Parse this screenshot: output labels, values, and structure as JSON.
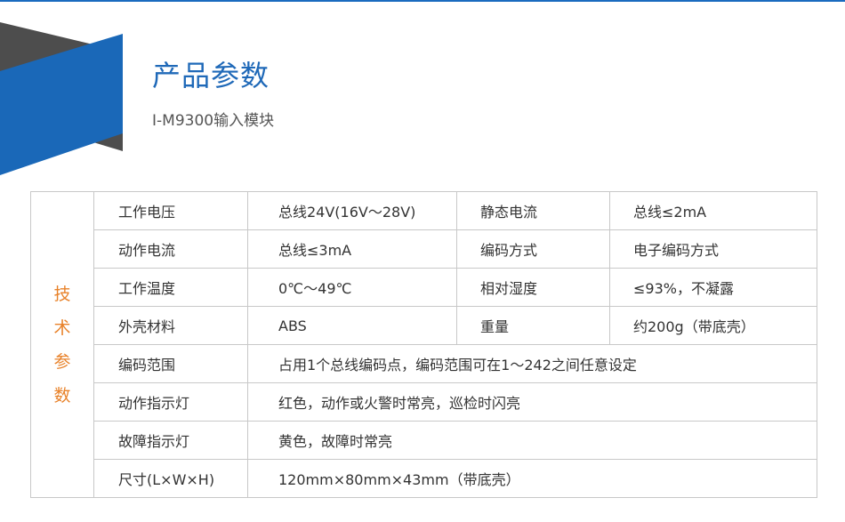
{
  "header": {
    "title": "产品参数",
    "subtitle": "I-M9300输入模块"
  },
  "colors": {
    "accent": "#1f69b8",
    "side_label": "#e8822a",
    "deco_gray": "#4d4d4d"
  },
  "table": {
    "side_label": [
      "技",
      "术",
      "参",
      "数"
    ],
    "pair_rows": [
      {
        "k1": "工作电压",
        "v1": "总线24V(16V～28V)",
        "k2": "静态电流",
        "v2": "总线≤2mA"
      },
      {
        "k1": "动作电流",
        "v1": "总线≤3mA",
        "k2": "编码方式",
        "v2": "电子编码方式"
      },
      {
        "k1": "工作温度",
        "v1": "0℃～49℃",
        "k2": "相对湿度",
        "v2": "≤93%，不凝露"
      },
      {
        "k1": "外壳材料",
        "v1": "ABS",
        "k2": "重量",
        "v2": "约200g（带底壳）"
      }
    ],
    "wide_rows": [
      {
        "k": "编码范围",
        "v": "占用1个总线编码点，编码范围可在1～242之间任意设定"
      },
      {
        "k": "动作指示灯",
        "v": "红色，动作或火警时常亮，巡检时闪亮"
      },
      {
        "k": "故障指示灯",
        "v": "黄色，故障时常亮"
      },
      {
        "k": "尺寸(L×W×H)",
        "v": "120mm×80mm×43mm（带底壳）"
      }
    ]
  }
}
